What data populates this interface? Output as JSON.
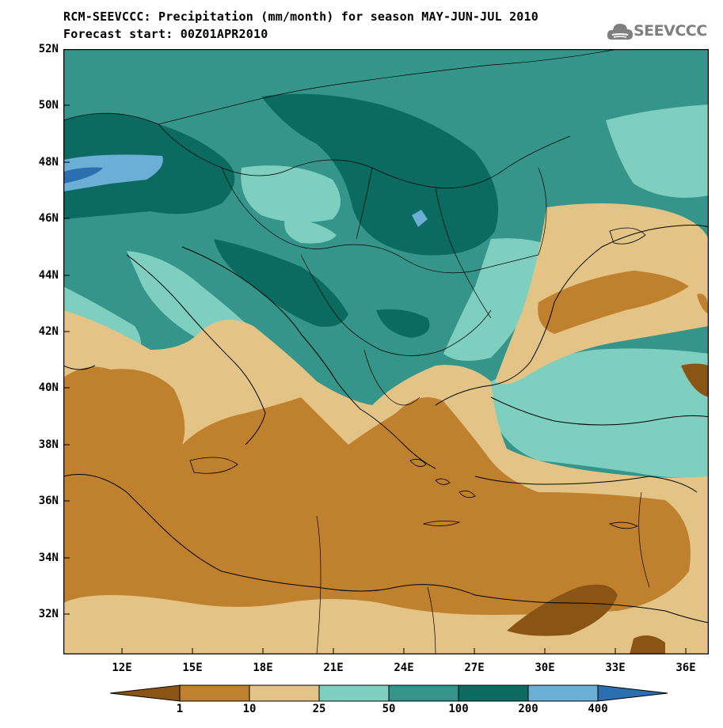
{
  "title": "RCM-SEEVCCC: Precipitation (mm/month) for season MAY-JUN-JUL 2010",
  "subtitle": "Forecast start: 00Z01APR2010",
  "logo": {
    "text": "SEEVCCC",
    "icon": "cloud-icon"
  },
  "lat_labels": [
    "52N",
    "50N",
    "48N",
    "46N",
    "44N",
    "42N",
    "40N",
    "38N",
    "36N",
    "34N",
    "32N"
  ],
  "lon_labels": [
    "12E",
    "15E",
    "18E",
    "21E",
    "24E",
    "27E",
    "30E",
    "33E",
    "36E"
  ],
  "colorbar": {
    "levels": [
      "1",
      "10",
      "25",
      "50",
      "100",
      "200",
      "400"
    ],
    "colors": [
      "#8a5414",
      "#c0812f",
      "#e3c486",
      "#7ecfc0",
      "#36958a",
      "#0b6b60",
      "#6baed6",
      "#2c6fb0"
    ]
  },
  "chart_data": {
    "type": "heatmap",
    "variable": "Precipitation (mm/month)",
    "season": "MAY-JUN-JUL 2010",
    "lon_range": [
      9.5,
      37
    ],
    "lat_range": [
      30.5,
      52
    ],
    "contour_levels": [
      1,
      10,
      25,
      50,
      100,
      200,
      400
    ]
  }
}
